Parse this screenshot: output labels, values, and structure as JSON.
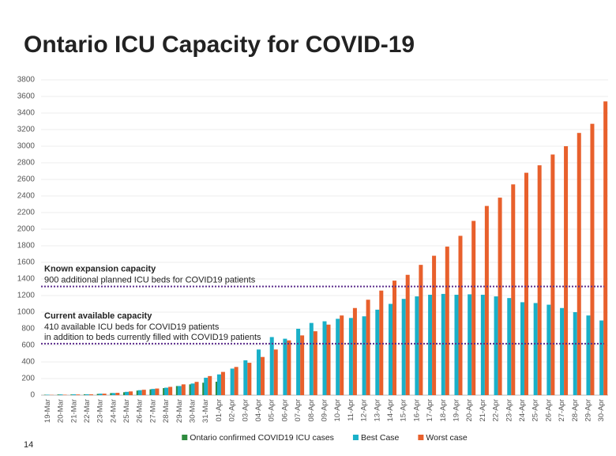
{
  "chart_data": {
    "type": "bar",
    "title": "Ontario ICU Capacity for COVID-19",
    "page_number": "14",
    "categories": [
      "19-Mar",
      "20-Mar",
      "21-Mar",
      "22-Mar",
      "23-Mar",
      "24-Mar",
      "25-Mar",
      "26-Mar",
      "27-Mar",
      "28-Mar",
      "29-Mar",
      "30-Mar",
      "31-Mar",
      "01-Apr",
      "02-Apr",
      "03-Apr",
      "04-Apr",
      "05-Apr",
      "06-Apr",
      "07-Apr",
      "08-Apr",
      "09-Apr",
      "10-Apr",
      "11-Apr",
      "12-Apr",
      "13-Apr",
      "14-Apr",
      "15-Apr",
      "16-Apr",
      "17-Apr",
      "18-Apr",
      "19-Apr",
      "20-Apr",
      "21-Apr",
      "22-Apr",
      "23-Apr",
      "24-Apr",
      "25-Apr",
      "26-Apr",
      "27-Apr",
      "28-Apr",
      "29-Apr",
      "30-Apr"
    ],
    "series": [
      {
        "name": "Ontario confirmed COVID19 ICU cases",
        "color": "#2e8b3e",
        "values": [
          5,
          8,
          8,
          10,
          15,
          25,
          35,
          55,
          70,
          85,
          110,
          130,
          150,
          162,
          null,
          null,
          null,
          null,
          null,
          null,
          null,
          null,
          null,
          null,
          null,
          null,
          null,
          null,
          null,
          null,
          null,
          null,
          null,
          null,
          null,
          null,
          null,
          null,
          null,
          null,
          null,
          null,
          null
        ]
      },
      {
        "name": "Best Case",
        "color": "#1ab0c8",
        "values": [
          5,
          8,
          10,
          10,
          18,
          25,
          40,
          60,
          75,
          90,
          110,
          140,
          210,
          250,
          320,
          420,
          550,
          700,
          680,
          800,
          870,
          890,
          920,
          930,
          950,
          1030,
          1100,
          1160,
          1190,
          1210,
          1220,
          1210,
          1215,
          1210,
          1190,
          1170,
          1120,
          1110,
          1090,
          1050,
          1000,
          960,
          900
        ]
      },
      {
        "name": "Worst case",
        "color": "#e8602c",
        "values": [
          3,
          5,
          8,
          10,
          18,
          28,
          45,
          65,
          80,
          100,
          130,
          160,
          230,
          280,
          340,
          390,
          460,
          550,
          660,
          720,
          770,
          850,
          960,
          1050,
          1150,
          1260,
          1380,
          1450,
          1570,
          1680,
          1790,
          1920,
          2100,
          2280,
          2380,
          2540,
          2680,
          2770,
          2900,
          3000,
          3160,
          3270,
          3540
        ]
      }
    ],
    "ylim": [
      0,
      3800
    ],
    "yticks": [
      0,
      200,
      400,
      600,
      800,
      1000,
      1200,
      1400,
      1600,
      1800,
      2000,
      2200,
      2400,
      2600,
      2800,
      3000,
      3200,
      3400,
      3600,
      3800
    ],
    "grid": true,
    "reference_lines": [
      {
        "value": 1310,
        "color": "#5b2c8b",
        "heading": "Known expansion capacity",
        "lines": [
          "900 additional planned ICU beds for COVID19 patients"
        ]
      },
      {
        "value": 620,
        "color": "#5b2c8b",
        "heading": "Current available capacity",
        "lines": [
          "410 available ICU beds for COVID19 patients",
          "in addition to beds currently filled with COVID19 patients"
        ]
      }
    ]
  }
}
